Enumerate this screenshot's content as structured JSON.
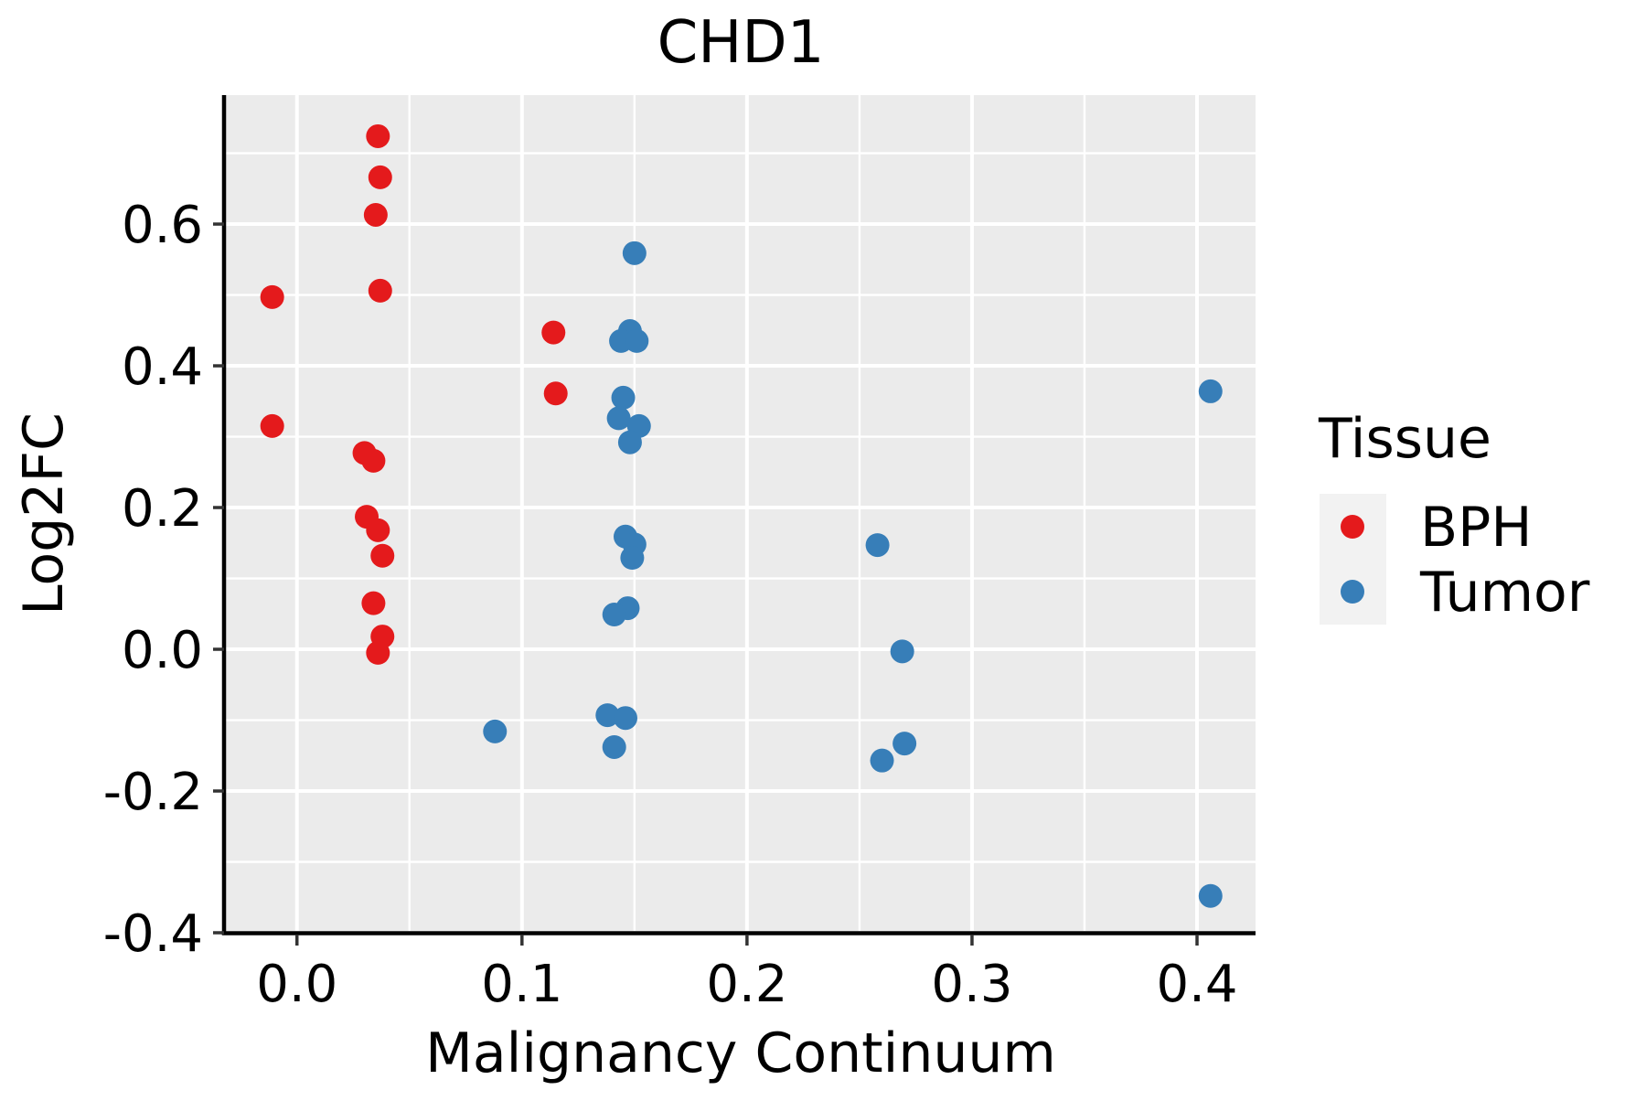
{
  "chart_data": {
    "type": "scatter",
    "title": "CHD1",
    "xlabel": "Malignancy Continuum",
    "ylabel": "Log2FC",
    "xlim": [
      -0.032,
      0.426
    ],
    "ylim": [
      -0.4,
      0.782
    ],
    "grid": true,
    "panel_background": "#EBEBEB",
    "gridline_color": "#FFFFFF",
    "axis_line_color": "#000000",
    "tick_color": "#333333",
    "x_ticks": [
      0.0,
      0.1,
      0.2,
      0.3,
      0.4
    ],
    "x_tick_labels": [
      "0.0",
      "0.1",
      "0.2",
      "0.3",
      "0.4"
    ],
    "x_minor_gridlines": [
      0.05,
      0.15,
      0.25,
      0.35
    ],
    "y_ticks": [
      0.6,
      0.4,
      0.2,
      0.0,
      -0.2,
      -0.4
    ],
    "y_tick_labels": [
      "0.6",
      "0.4",
      "0.2",
      "0.0",
      "-0.2",
      "-0.4"
    ],
    "y_minor_gridlines": [
      0.7,
      0.5,
      0.3,
      0.1,
      -0.1,
      -0.3
    ],
    "legend": {
      "title": "Tissue",
      "position": "right"
    },
    "point_radius": 13,
    "series": [
      {
        "name": "BPH",
        "color": "#E41A1C",
        "points": [
          [
            -0.011,
            0.497
          ],
          [
            -0.011,
            0.315
          ],
          [
            0.036,
            0.724
          ],
          [
            0.037,
            0.666
          ],
          [
            0.035,
            0.613
          ],
          [
            0.037,
            0.506
          ],
          [
            0.03,
            0.277
          ],
          [
            0.034,
            0.266
          ],
          [
            0.031,
            0.187
          ],
          [
            0.036,
            0.168
          ],
          [
            0.038,
            0.132
          ],
          [
            0.034,
            0.065
          ],
          [
            0.038,
            0.018
          ],
          [
            0.036,
            -0.005
          ],
          [
            0.114,
            0.447
          ],
          [
            0.115,
            0.361
          ]
        ]
      },
      {
        "name": "Tumor",
        "color": "#377EB8",
        "points": [
          [
            0.15,
            0.559
          ],
          [
            0.148,
            0.449
          ],
          [
            0.144,
            0.435
          ],
          [
            0.151,
            0.435
          ],
          [
            0.145,
            0.355
          ],
          [
            0.143,
            0.326
          ],
          [
            0.152,
            0.315
          ],
          [
            0.148,
            0.292
          ],
          [
            0.146,
            0.159
          ],
          [
            0.15,
            0.148
          ],
          [
            0.149,
            0.129
          ],
          [
            0.147,
            0.058
          ],
          [
            0.141,
            0.049
          ],
          [
            0.088,
            -0.116
          ],
          [
            0.138,
            -0.093
          ],
          [
            0.146,
            -0.097
          ],
          [
            0.141,
            -0.138
          ],
          [
            0.258,
            0.147
          ],
          [
            0.269,
            -0.003
          ],
          [
            0.27,
            -0.133
          ],
          [
            0.26,
            -0.157
          ],
          [
            0.406,
            0.364
          ],
          [
            0.406,
            -0.348
          ]
        ]
      }
    ]
  }
}
